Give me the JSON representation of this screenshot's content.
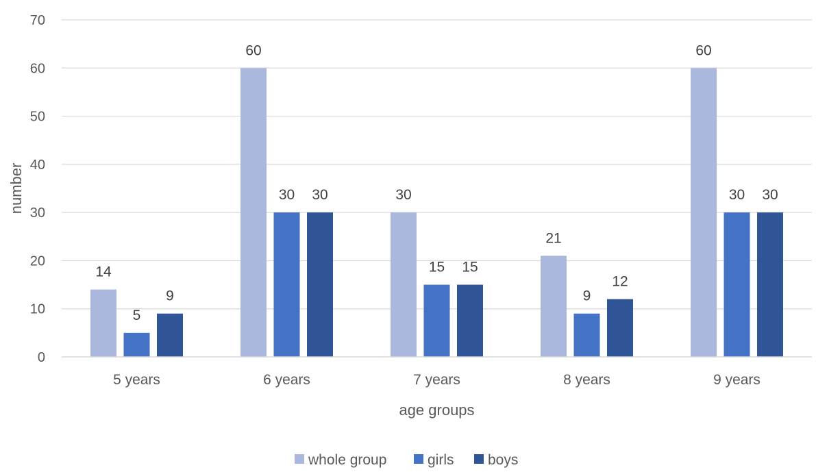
{
  "chart_data": {
    "type": "bar",
    "title": "",
    "xlabel": "age groups",
    "ylabel": "number",
    "ylim": [
      0,
      70
    ],
    "yticks": [
      0,
      10,
      20,
      30,
      40,
      50,
      60,
      70
    ],
    "grid": true,
    "legend_position": "bottom",
    "categories": [
      "5 years",
      "6 years",
      "7 years",
      "8 years",
      "9 years"
    ],
    "series": [
      {
        "name": "whole group",
        "color": "#a9b8dc",
        "values": [
          14,
          60,
          30,
          21,
          60
        ]
      },
      {
        "name": "girls",
        "color": "#4472c4",
        "values": [
          5,
          30,
          15,
          9,
          30
        ]
      },
      {
        "name": "boys",
        "color": "#2f5597",
        "values": [
          9,
          30,
          15,
          12,
          30
        ]
      }
    ]
  }
}
